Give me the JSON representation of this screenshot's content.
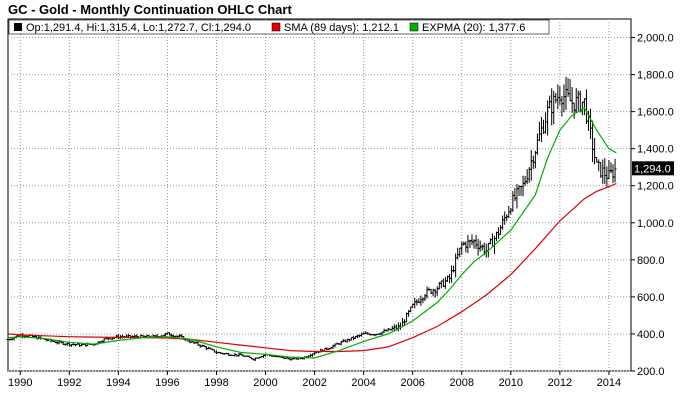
{
  "chart_data": {
    "type": "line",
    "title": "GC - Gold - Monthly Continuation OHLC Chart",
    "legend": [
      {
        "label": "Op:1,291.4, Hi:1,315.4, Lo:1,272.7, Cl:1,294.0",
        "color": "#000000"
      },
      {
        "label": "SMA (89 days): 1,212.1",
        "color": "#e00000"
      },
      {
        "label": "EXPMA (20): 1,377.6",
        "color": "#00b000"
      }
    ],
    "legend_position": "top-left",
    "last_price_label": "1,294.0",
    "y_axis_position": "right",
    "ylim": [
      200,
      2100
    ],
    "xlim": [
      1989.5,
      2014.9
    ],
    "y_ticks": [
      200,
      400,
      600,
      800,
      1000,
      1200,
      1400,
      1600,
      1800,
      2000
    ],
    "y_tick_labels": [
      "200.0",
      "400.0",
      "600.0",
      "800.0",
      "1,000.0",
      "1,200.0",
      "1,400.0",
      "1,600.0",
      "1,800.0",
      "2,000.0"
    ],
    "x_ticks": [
      1990,
      1992,
      1994,
      1996,
      1998,
      2000,
      2002,
      2004,
      2006,
      2008,
      2010,
      2012,
      2014
    ],
    "x_tick_labels": [
      "1990",
      "1992",
      "1994",
      "1996",
      "1998",
      "2000",
      "2002",
      "2004",
      "2006",
      "2008",
      "2010",
      "2012",
      "2014"
    ],
    "grid": true,
    "series": [
      {
        "type": "ohlc",
        "color": "#000000",
        "x": [
          1989.5,
          1990.0,
          1990.5,
          1991.0,
          1991.5,
          1992.0,
          1992.5,
          1993.0,
          1993.5,
          1994.0,
          1994.5,
          1995.0,
          1995.5,
          1996.0,
          1996.5,
          1997.0,
          1997.5,
          1998.0,
          1998.5,
          1999.0,
          1999.5,
          2000.0,
          2000.5,
          2001.0,
          2001.5,
          2002.0,
          2002.5,
          2003.0,
          2003.5,
          2004.0,
          2004.5,
          2005.0,
          2005.5,
          2006.0,
          2006.5,
          2007.0,
          2007.5,
          2008.0,
          2008.5,
          2009.0,
          2009.5,
          2010.0,
          2010.5,
          2011.0,
          2011.5,
          2012.0,
          2012.5,
          2013.0,
          2013.5,
          2014.0,
          2014.3
        ],
        "close": [
          370,
          395,
          385,
          370,
          355,
          345,
          340,
          345,
          375,
          385,
          385,
          385,
          385,
          400,
          385,
          355,
          330,
          300,
          290,
          285,
          265,
          290,
          275,
          265,
          270,
          300,
          320,
          350,
          375,
          400,
          400,
          420,
          440,
          550,
          620,
          650,
          700,
          880,
          900,
          850,
          950,
          1100,
          1200,
          1400,
          1600,
          1700,
          1650,
          1650,
          1300,
          1250,
          1294
        ]
      },
      {
        "name": "SMA (89 days)",
        "type": "line",
        "color": "#e00000",
        "x": [
          1989.5,
          1990.0,
          1991.0,
          1992.0,
          1993.0,
          1994.0,
          1995.0,
          1996.0,
          1997.0,
          1998.0,
          1999.0,
          2000.0,
          2001.0,
          2002.0,
          2003.0,
          2004.0,
          2005.0,
          2006.0,
          2007.0,
          2008.0,
          2009.0,
          2010.0,
          2011.0,
          2012.0,
          2013.0,
          2013.5,
          2014.0,
          2014.3
        ],
        "values": [
          400,
          395,
          390,
          385,
          383,
          382,
          380,
          378,
          370,
          355,
          340,
          325,
          310,
          305,
          305,
          310,
          330,
          380,
          440,
          520,
          610,
          720,
          860,
          1010,
          1130,
          1170,
          1195,
          1212
        ]
      },
      {
        "name": "EXPMA (20)",
        "type": "line",
        "color": "#00b000",
        "x": [
          1989.5,
          1990.0,
          1991.0,
          1992.0,
          1993.0,
          1994.0,
          1995.0,
          1996.0,
          1997.0,
          1998.0,
          1999.0,
          2000.0,
          2001.0,
          2002.0,
          2003.0,
          2004.0,
          2005.0,
          2006.0,
          2007.0,
          2007.5,
          2008.0,
          2008.5,
          2009.0,
          2010.0,
          2011.0,
          2011.5,
          2012.0,
          2012.5,
          2013.0,
          2013.5,
          2014.0,
          2014.3
        ],
        "values": [
          380,
          385,
          375,
          355,
          345,
          365,
          380,
          385,
          370,
          330,
          300,
          290,
          275,
          270,
          310,
          360,
          400,
          470,
          570,
          640,
          720,
          790,
          840,
          960,
          1150,
          1350,
          1500,
          1580,
          1620,
          1500,
          1400,
          1378
        ]
      }
    ]
  }
}
